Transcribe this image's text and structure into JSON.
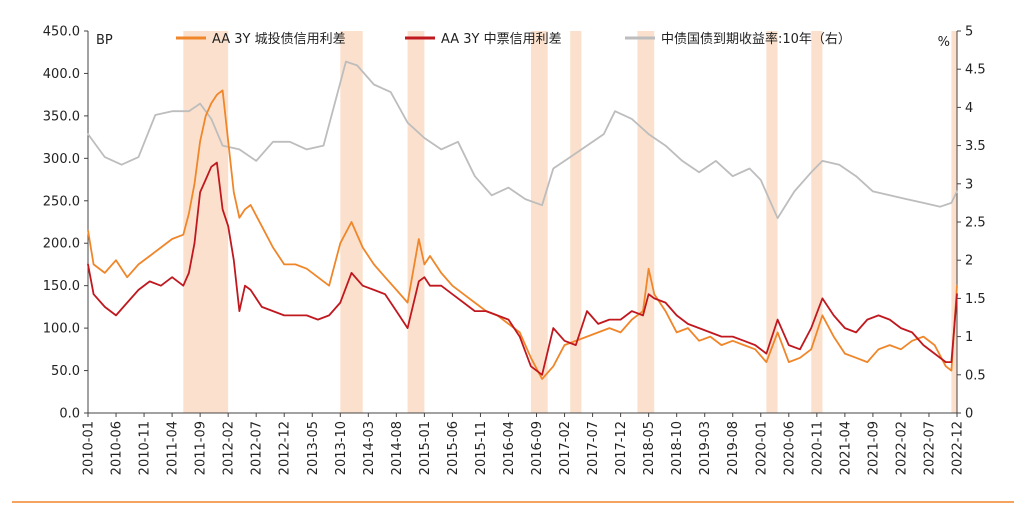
{
  "chart_data": {
    "type": "line",
    "title": "",
    "y_left_unit": "BP",
    "y_right_unit": "%",
    "y_left_lim": [
      0,
      450
    ],
    "y_right_lim": [
      0,
      5
    ],
    "y_left_ticks": [
      "0.0",
      "50.0",
      "100.0",
      "150.0",
      "200.0",
      "250.0",
      "300.0",
      "350.0",
      "400.0",
      "450.0"
    ],
    "y_right_ticks": [
      "0",
      "0.5",
      "1",
      "1.5",
      "2",
      "2.5",
      "3",
      "3.5",
      "4",
      "4.5",
      "5"
    ],
    "x_ticks": [
      "2010-01",
      "2010-06",
      "2010-11",
      "2011-04",
      "2011-09",
      "2012-02",
      "2012-07",
      "2012-12",
      "2013-05",
      "2013-10",
      "2014-03",
      "2014-08",
      "2015-01",
      "2015-06",
      "2015-11",
      "2016-04",
      "2016-09",
      "2017-02",
      "2017-07",
      "2017-12",
      "2018-05",
      "2018-10",
      "2019-03",
      "2019-08",
      "2020-01",
      "2020-06",
      "2020-11",
      "2021-04",
      "2021-09",
      "2022-02",
      "2022-07",
      "2022-12"
    ],
    "x_range": [
      "2010-01",
      "2022-12"
    ],
    "legend_position": "top",
    "grid": false,
    "shaded_periods": [
      [
        "2011-06",
        "2012-02"
      ],
      [
        "2013-10",
        "2014-02"
      ],
      [
        "2014-10",
        "2015-01"
      ],
      [
        "2016-08",
        "2016-11"
      ],
      [
        "2017-03",
        "2017-05"
      ],
      [
        "2018-03",
        "2018-06"
      ],
      [
        "2020-02",
        "2020-04"
      ],
      [
        "2020-10",
        "2020-12"
      ],
      [
        "2022-11",
        "2022-12"
      ]
    ],
    "shade_color": "#fbe1cd",
    "series": [
      {
        "name": "AA 3Y 城投债信用利差",
        "axis": "left",
        "color": "#f0862a",
        "x": [
          "2010-01",
          "2010-02",
          "2010-04",
          "2010-06",
          "2010-08",
          "2010-10",
          "2010-12",
          "2011-02",
          "2011-04",
          "2011-06",
          "2011-07",
          "2011-08",
          "2011-09",
          "2011-10",
          "2011-11",
          "2011-12",
          "2012-01",
          "2012-02",
          "2012-03",
          "2012-04",
          "2012-05",
          "2012-06",
          "2012-08",
          "2012-10",
          "2012-12",
          "2013-02",
          "2013-04",
          "2013-06",
          "2013-08",
          "2013-10",
          "2013-12",
          "2014-02",
          "2014-04",
          "2014-06",
          "2014-08",
          "2014-10",
          "2014-12",
          "2015-01",
          "2015-02",
          "2015-04",
          "2015-06",
          "2015-08",
          "2015-10",
          "2015-12",
          "2016-02",
          "2016-04",
          "2016-06",
          "2016-08",
          "2016-10",
          "2016-12",
          "2017-02",
          "2017-04",
          "2017-06",
          "2017-08",
          "2017-10",
          "2017-12",
          "2018-02",
          "2018-04",
          "2018-05",
          "2018-06",
          "2018-08",
          "2018-10",
          "2018-12",
          "2019-02",
          "2019-04",
          "2019-06",
          "2019-08",
          "2019-10",
          "2019-12",
          "2020-02",
          "2020-04",
          "2020-06",
          "2020-08",
          "2020-10",
          "2020-12",
          "2021-02",
          "2021-04",
          "2021-06",
          "2021-08",
          "2021-10",
          "2021-12",
          "2022-02",
          "2022-04",
          "2022-06",
          "2022-08",
          "2022-10",
          "2022-11",
          "2022-12"
        ],
        "values": [
          215,
          175,
          165,
          180,
          160,
          175,
          185,
          195,
          205,
          210,
          235,
          270,
          320,
          350,
          365,
          375,
          380,
          320,
          260,
          230,
          240,
          245,
          220,
          195,
          175,
          175,
          170,
          160,
          150,
          200,
          225,
          195,
          175,
          160,
          145,
          130,
          205,
          175,
          185,
          165,
          150,
          140,
          130,
          120,
          115,
          105,
          95,
          65,
          40,
          55,
          80,
          85,
          90,
          95,
          100,
          95,
          110,
          120,
          170,
          140,
          120,
          95,
          100,
          85,
          90,
          80,
          85,
          80,
          75,
          60,
          95,
          60,
          65,
          75,
          115,
          90,
          70,
          65,
          60,
          75,
          80,
          75,
          85,
          90,
          80,
          55,
          50,
          150
        ]
      },
      {
        "name": "AA 3Y 中票信用利差",
        "axis": "left",
        "color": "#c0181f",
        "x": [
          "2010-01",
          "2010-02",
          "2010-04",
          "2010-06",
          "2010-08",
          "2010-10",
          "2010-12",
          "2011-02",
          "2011-04",
          "2011-06",
          "2011-07",
          "2011-08",
          "2011-09",
          "2011-10",
          "2011-11",
          "2011-12",
          "2012-01",
          "2012-02",
          "2012-03",
          "2012-04",
          "2012-05",
          "2012-06",
          "2012-08",
          "2012-10",
          "2012-12",
          "2013-02",
          "2013-04",
          "2013-06",
          "2013-08",
          "2013-10",
          "2013-12",
          "2014-02",
          "2014-04",
          "2014-06",
          "2014-08",
          "2014-10",
          "2014-12",
          "2015-01",
          "2015-02",
          "2015-04",
          "2015-06",
          "2015-08",
          "2015-10",
          "2015-12",
          "2016-02",
          "2016-04",
          "2016-06",
          "2016-08",
          "2016-10",
          "2016-12",
          "2017-02",
          "2017-04",
          "2017-06",
          "2017-08",
          "2017-10",
          "2017-12",
          "2018-02",
          "2018-04",
          "2018-05",
          "2018-06",
          "2018-08",
          "2018-10",
          "2018-12",
          "2019-02",
          "2019-04",
          "2019-06",
          "2019-08",
          "2019-10",
          "2019-12",
          "2020-02",
          "2020-04",
          "2020-06",
          "2020-08",
          "2020-10",
          "2020-12",
          "2021-02",
          "2021-04",
          "2021-06",
          "2021-08",
          "2021-10",
          "2021-12",
          "2022-02",
          "2022-04",
          "2022-06",
          "2022-08",
          "2022-10",
          "2022-11",
          "2022-12"
        ],
        "values": [
          175,
          140,
          125,
          115,
          130,
          145,
          155,
          150,
          160,
          150,
          165,
          200,
          260,
          275,
          290,
          295,
          240,
          220,
          180,
          120,
          150,
          145,
          125,
          120,
          115,
          115,
          115,
          110,
          115,
          130,
          165,
          150,
          145,
          140,
          120,
          100,
          155,
          160,
          150,
          150,
          140,
          130,
          120,
          120,
          115,
          110,
          90,
          55,
          45,
          100,
          85,
          80,
          120,
          105,
          110,
          110,
          120,
          115,
          140,
          135,
          130,
          115,
          105,
          100,
          95,
          90,
          90,
          85,
          80,
          70,
          110,
          80,
          75,
          100,
          135,
          115,
          100,
          95,
          110,
          115,
          110,
          100,
          95,
          80,
          70,
          60,
          60,
          140
        ]
      },
      {
        "name": "中债国债到期收益率:10年（右）",
        "axis": "right",
        "color": "#bdbdbd",
        "x": [
          "2010-01",
          "2010-04",
          "2010-07",
          "2010-10",
          "2011-01",
          "2011-04",
          "2011-07",
          "2011-09",
          "2011-11",
          "2012-01",
          "2012-04",
          "2012-07",
          "2012-10",
          "2013-01",
          "2013-04",
          "2013-07",
          "2013-09",
          "2013-11",
          "2014-01",
          "2014-04",
          "2014-07",
          "2014-10",
          "2015-01",
          "2015-04",
          "2015-07",
          "2015-10",
          "2016-01",
          "2016-04",
          "2016-07",
          "2016-10",
          "2016-12",
          "2017-03",
          "2017-06",
          "2017-09",
          "2017-11",
          "2018-02",
          "2018-05",
          "2018-08",
          "2018-11",
          "2019-02",
          "2019-05",
          "2019-08",
          "2019-11",
          "2020-01",
          "2020-04",
          "2020-07",
          "2020-10",
          "2020-12",
          "2021-03",
          "2021-06",
          "2021-09",
          "2021-12",
          "2022-03",
          "2022-06",
          "2022-09",
          "2022-11",
          "2022-12"
        ],
        "values": [
          3.65,
          3.35,
          3.25,
          3.35,
          3.9,
          3.95,
          3.95,
          4.05,
          3.85,
          3.5,
          3.45,
          3.3,
          3.55,
          3.55,
          3.45,
          3.5,
          4.05,
          4.6,
          4.55,
          4.3,
          4.2,
          3.8,
          3.6,
          3.45,
          3.55,
          3.1,
          2.85,
          2.95,
          2.8,
          2.72,
          3.2,
          3.35,
          3.5,
          3.65,
          3.95,
          3.85,
          3.65,
          3.5,
          3.3,
          3.15,
          3.3,
          3.1,
          3.2,
          3.05,
          2.55,
          2.9,
          3.15,
          3.3,
          3.25,
          3.1,
          2.9,
          2.85,
          2.8,
          2.75,
          2.7,
          2.75,
          2.9
        ]
      }
    ]
  }
}
